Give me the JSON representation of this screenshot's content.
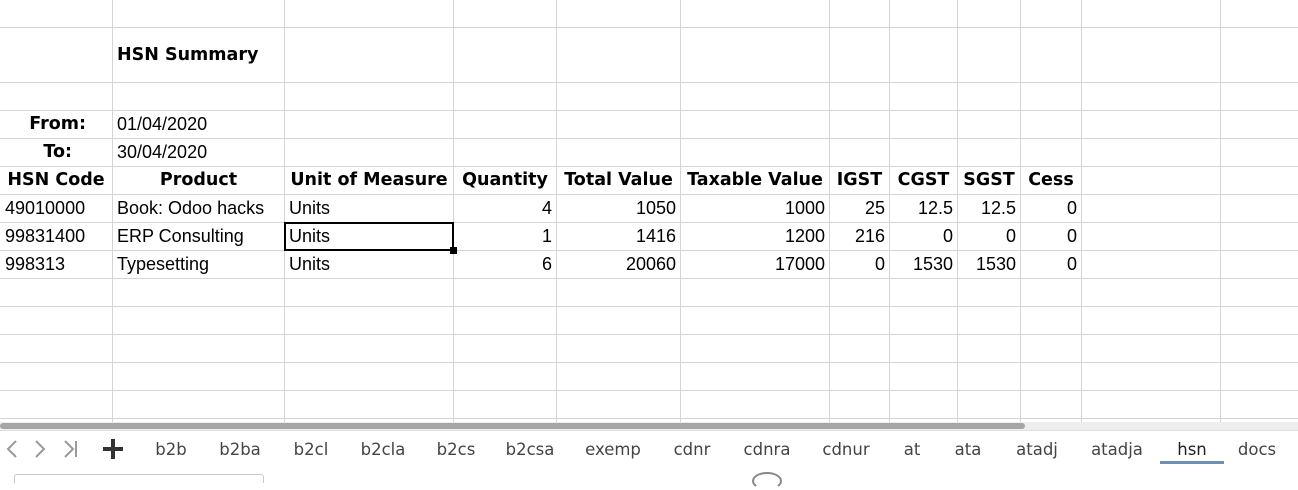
{
  "sheet": {
    "title": "HSN Summary",
    "from_label": "From:",
    "from_value": "01/04/2020",
    "to_label": "To:",
    "to_value": "30/04/2020",
    "headers": {
      "hsn_code": "HSN Code",
      "product": "Product",
      "uom": "Unit of Measure",
      "quantity": "Quantity",
      "total_value": "Total Value",
      "taxable_value": "Taxable Value",
      "igst": "IGST",
      "cgst": "CGST",
      "sgst": "SGST",
      "cess": "Cess"
    },
    "rows": [
      {
        "hsn_code": "49010000",
        "product": "Book: Odoo hacks",
        "uom": "Units",
        "quantity": "4",
        "total_value": "1050",
        "taxable_value": "1000",
        "igst": "25",
        "cgst": "12.5",
        "sgst": "12.5",
        "cess": "0"
      },
      {
        "hsn_code": "99831400",
        "product": "ERP Consulting",
        "uom": "Units",
        "quantity": "1",
        "total_value": "1416",
        "taxable_value": "1200",
        "igst": "216",
        "cgst": "0",
        "sgst": "0",
        "cess": "0"
      },
      {
        "hsn_code": "998313",
        "product": "Typesetting",
        "uom": "Units",
        "quantity": "6",
        "total_value": "20060",
        "taxable_value": "17000",
        "igst": "0",
        "cgst": "1530",
        "sgst": "1530",
        "cess": "0"
      }
    ]
  },
  "tabs": [
    "b2b",
    "b2ba",
    "b2cl",
    "b2cla",
    "b2cs",
    "b2csa",
    "exemp",
    "cdnr",
    "cdnra",
    "cdnur",
    "at",
    "ata",
    "atadj",
    "atadja",
    "hsn",
    "docs"
  ],
  "active_tab": "hsn",
  "icons": {
    "first": "nav-first-icon",
    "prev": "nav-prev-icon",
    "next": "nav-next-icon",
    "last": "nav-last-icon",
    "add": "plus-icon"
  }
}
